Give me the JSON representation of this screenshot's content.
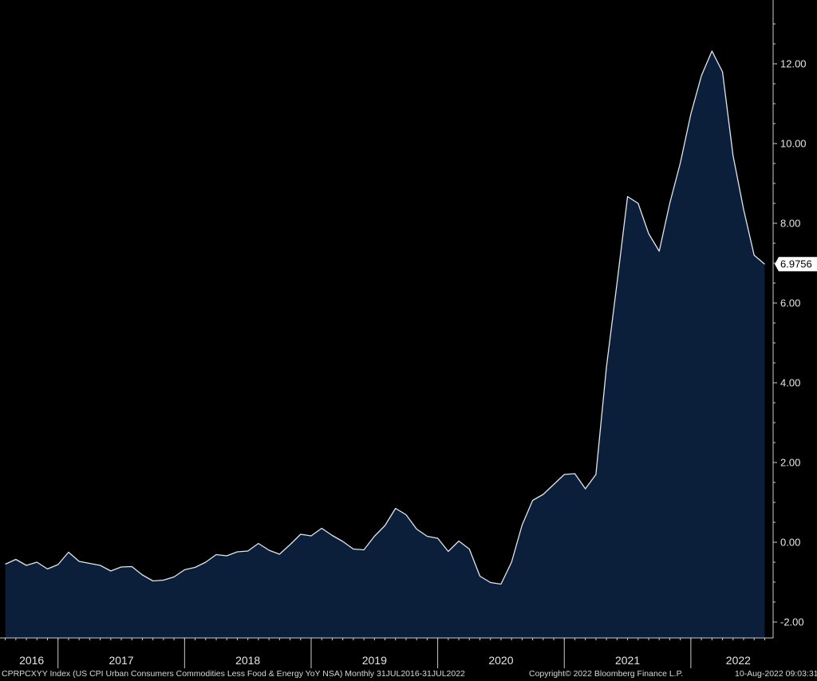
{
  "chart_data": {
    "type": "area",
    "title": "",
    "ticker_description": "CPRPCXYY Index (US CPI Urban Consumers Commodities Less Food & Energy YoY NSA)  Monthly 31JUL2016-31JUL2022",
    "copyright": "Copyright© 2022 Bloomberg Finance L.P.",
    "timestamp": "10-Aug-2022 09:03:31",
    "last_value_label": "6.9756",
    "ylim": [
      -2.4,
      13.6
    ],
    "y_ticks": [
      12,
      10,
      8,
      6,
      4,
      2,
      0,
      -2
    ],
    "y_tick_labels": [
      "12.00",
      "10.00",
      "8.00",
      "6.00",
      "4.00",
      "2.00",
      "0.00",
      "-2.00"
    ],
    "x_year_labels": [
      "2016",
      "2017",
      "2018",
      "2019",
      "2020",
      "2021",
      "2022"
    ],
    "x_year_label_months": [
      2.5,
      11,
      23,
      35,
      47,
      59,
      69.5
    ],
    "x_year_boundaries": [
      5,
      17,
      29,
      41,
      53,
      65
    ],
    "xlim": [
      -0.5,
      72.8
    ],
    "colors": {
      "fill": "#0b1f3a",
      "line": "#dfe6ee",
      "axis": "#cccccc",
      "background": "#000000"
    },
    "series": [
      {
        "start": "2016-07",
        "frequency": "monthly",
        "values": [
          -0.55,
          -0.43,
          -0.58,
          -0.5,
          -0.67,
          -0.56,
          -0.25,
          -0.48,
          -0.53,
          -0.58,
          -0.72,
          -0.62,
          -0.61,
          -0.82,
          -0.97,
          -0.95,
          -0.87,
          -0.69,
          -0.63,
          -0.5,
          -0.31,
          -0.34,
          -0.24,
          -0.22,
          -0.03,
          -0.2,
          -0.3,
          -0.06,
          0.2,
          0.16,
          0.35,
          0.17,
          0.02,
          -0.17,
          -0.19,
          0.15,
          0.42,
          0.85,
          0.69,
          0.33,
          0.15,
          0.1,
          -0.23,
          0.03,
          -0.17,
          -0.85,
          -1.01,
          -1.05,
          -0.5,
          0.43,
          1.05,
          1.2,
          1.45,
          1.7,
          1.72,
          1.34,
          1.7,
          4.4,
          6.5,
          8.67,
          8.5,
          7.74,
          7.3,
          8.5,
          9.51,
          10.74,
          11.7,
          12.32,
          11.8,
          9.7,
          8.35,
          7.2,
          6.9756
        ]
      }
    ]
  }
}
